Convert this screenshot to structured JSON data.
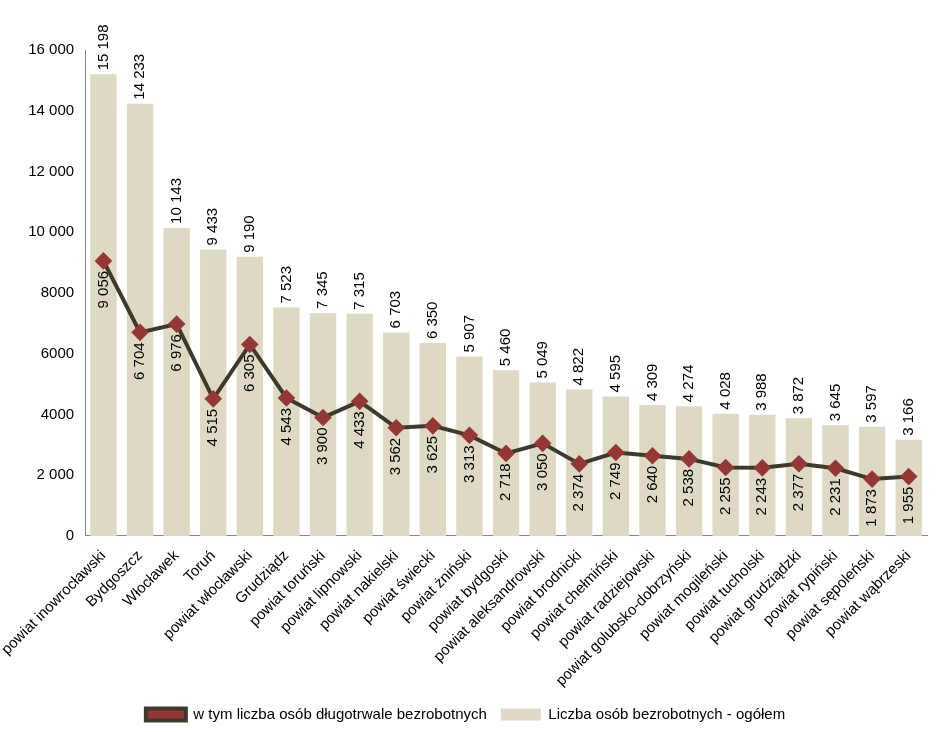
{
  "chart_data": {
    "type": "bar",
    "categories": [
      "powiat inowrocławski",
      "Bydgoszcz",
      "Włocławek",
      "Toruń",
      "powiat włocławski",
      "Grudziądz",
      "powiat toruński",
      "powiat lipnowski",
      "powiat nakielski",
      "powiat świecki",
      "powiat żniński",
      "powiat bydgoski",
      "powiat aleksandrowski",
      "powiat brodnicki",
      "powiat chełmiński",
      "powiat radziejowski",
      "powiat golubsko-dobrzyński",
      "powiat mogileński",
      "powiat tucholski",
      "powiat grudziądzki",
      "powiat rypiński",
      "powiat sępoleński",
      "powiat wąbrzeski"
    ],
    "series": [
      {
        "name": "Liczba osób bezrobotnych - ogółem",
        "type": "bar",
        "color": "#ddd9c3",
        "values": [
          15198,
          14233,
          10143,
          9433,
          9190,
          7523,
          7345,
          7315,
          6703,
          6350,
          5907,
          5460,
          5049,
          4822,
          4595,
          4309,
          4274,
          4028,
          3988,
          3872,
          3645,
          3597,
          3166
        ],
        "value_labels": [
          "15 198",
          "14 233",
          "10 143",
          "9 433",
          "9 190",
          "7 523",
          "7 345",
          "7 315",
          "6 703",
          "6 350",
          "5 907",
          "5 460",
          "5 049",
          "4 822",
          "4 595",
          "4 309",
          "4 274",
          "4 028",
          "3 988",
          "3 872",
          "3 645",
          "3 597",
          "3 166"
        ]
      },
      {
        "name": "w tym liczba osób długotrwale bezrobotnych",
        "type": "line",
        "color": "#3d3a2a",
        "marker": "diamond",
        "line_style": "solid",
        "values": [
          9056,
          6704,
          6976,
          4515,
          6305,
          4543,
          3900,
          4433,
          3562,
          3625,
          3313,
          2718,
          3050,
          2374,
          2749,
          2640,
          2538,
          2255,
          2243,
          2377,
          2231,
          1873,
          1955
        ],
        "value_labels": [
          "9 056",
          "6 704",
          "6 976",
          "4 515",
          "6 305",
          "4 543",
          "3 900",
          "4 433",
          "3 562",
          "3 625",
          "3 313",
          "2 718",
          "3 050",
          "2 374",
          "2 749",
          "2 640",
          "2 538",
          "2 255",
          "2 243",
          "2 377",
          "2 231",
          "1 873",
          "1 955"
        ]
      }
    ],
    "ylim": [
      0,
      16000
    ],
    "yticks": [
      0,
      {
        "value": 2000,
        "label": "2 000"
      },
      {
        "value": 4000,
        "label": "4000"
      },
      {
        "value": 6000,
        "label": "6000"
      },
      {
        "value": 8000,
        "label": "8000"
      },
      {
        "value": 10000,
        "label": "10 000"
      },
      {
        "value": 12000,
        "label": "12 000"
      },
      {
        "value": 14000,
        "label": "14 000"
      },
      {
        "value": 16000,
        "label": "16 000"
      }
    ],
    "grid": false,
    "legend": "bottom",
    "data_labels": true
  }
}
